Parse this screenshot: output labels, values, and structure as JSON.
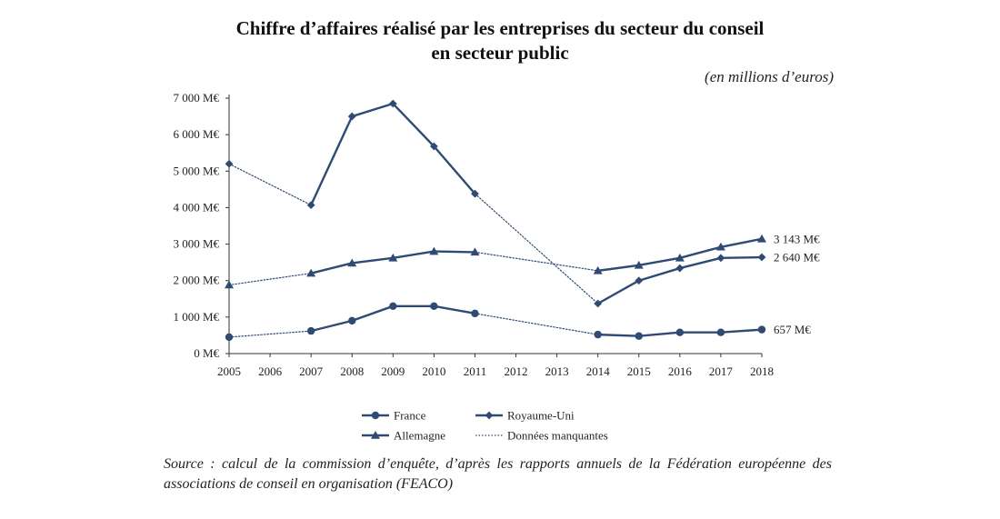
{
  "title_line1": "Chiffre d’affaires réalisé par les entreprises du secteur du conseil",
  "title_line2": "en secteur public",
  "unit_note": "(en millions d’euros)",
  "source_text": "Source : calcul de la commission d’enquête, d’après les rapports annuels de la Fédération européenne des associations de conseil en organisation (FEACO)",
  "colors": {
    "series": "#2f4b73",
    "text": "#222222"
  },
  "chart_data": {
    "type": "line",
    "x": [
      "2005",
      "2006",
      "2007",
      "2008",
      "2009",
      "2010",
      "2011",
      "2012",
      "2013",
      "2014",
      "2015",
      "2016",
      "2017",
      "2018"
    ],
    "ylim": [
      0,
      7000
    ],
    "yticks": [
      0,
      1000,
      2000,
      3000,
      4000,
      5000,
      6000,
      7000
    ],
    "ytick_labels": [
      "0 M€",
      "1 000 M€",
      "2 000 M€",
      "3 000 M€",
      "4 000 M€",
      "5 000 M€",
      "6 000 M€",
      "7 000 M€"
    ],
    "missing_data_label": "Données manquantes",
    "series": [
      {
        "name": "France",
        "marker": "circle",
        "values": [
          450,
          null,
          620,
          900,
          1300,
          1300,
          1100,
          null,
          null,
          520,
          480,
          580,
          580,
          657
        ],
        "end_label": "657 M€"
      },
      {
        "name": "Royaume-Uni",
        "marker": "diamond",
        "values": [
          5200,
          null,
          4070,
          6500,
          6850,
          5680,
          4380,
          null,
          null,
          1370,
          2000,
          2340,
          2620,
          2640
        ],
        "end_label": "2 640 M€"
      },
      {
        "name": "Allemagne",
        "marker": "triangle",
        "values": [
          1880,
          null,
          2200,
          2480,
          2620,
          2800,
          2780,
          null,
          null,
          2270,
          2420,
          2620,
          2920,
          3143
        ],
        "end_label": "3 143 M€"
      }
    ]
  }
}
